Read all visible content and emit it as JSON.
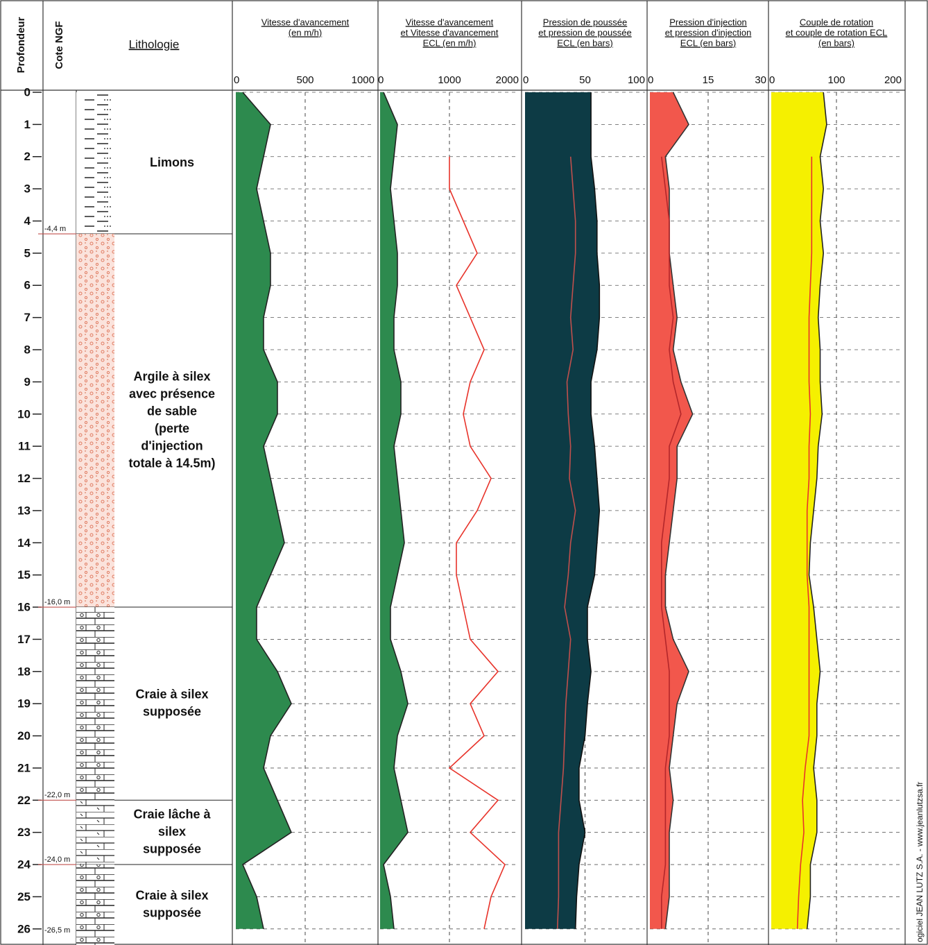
{
  "headers": {
    "depth": "Profondeur",
    "cote": "Cote NGF",
    "lithology": "Lithologie"
  },
  "depth": {
    "lim": [
      0,
      26.5
    ],
    "ticks": [
      0,
      1,
      2,
      3,
      4,
      5,
      6,
      7,
      8,
      9,
      10,
      11,
      12,
      13,
      14,
      15,
      16,
      17,
      18,
      19,
      20,
      21,
      22,
      23,
      24,
      25,
      26
    ]
  },
  "lithology": [
    {
      "top": 0,
      "bottom": 4.4,
      "cote": "-4,4 m",
      "pattern": "silt",
      "label": [
        "Limons"
      ]
    },
    {
      "top": 4.4,
      "bottom": 16.0,
      "cote": "-16,0 m",
      "pattern": "clay",
      "label": [
        "Argile à silex",
        "avec présence",
        "de sable",
        "(perte",
        "d'injection",
        "totale à 14.5m)"
      ]
    },
    {
      "top": 16.0,
      "bottom": 22.0,
      "cote": "-22,0 m",
      "pattern": "chalk",
      "label": [
        "Craie à silex",
        "supposée"
      ]
    },
    {
      "top": 22.0,
      "bottom": 24.0,
      "cote": "-24,0 m",
      "pattern": "loose-chalk",
      "label": [
        "Craie lâche à",
        "silex",
        "supposée"
      ]
    },
    {
      "top": 24.0,
      "bottom": 26.5,
      "cote": "-26,5 m",
      "pattern": "chalk",
      "label": [
        "Craie à silex",
        "supposée"
      ]
    }
  ],
  "chart_data": [
    {
      "type": "area",
      "title": [
        "Vitesse d'avancement",
        "(en m/h)"
      ],
      "xlim": [
        0,
        1000
      ],
      "xticks": [
        0,
        500,
        1000
      ],
      "grid": true,
      "series": [
        {
          "style": "fill",
          "color": "#2d8a4e",
          "outline": "#222222",
          "values": [
            50,
            250,
            200,
            150,
            200,
            250,
            250,
            200,
            200,
            300,
            300,
            200,
            250,
            300,
            350,
            250,
            150,
            150,
            300,
            400,
            250,
            200,
            300,
            400,
            50,
            150,
            200
          ]
        }
      ]
    },
    {
      "type": "area",
      "title": [
        "Vitesse d'avancement",
        "et Vitesse d'avancement",
        "ECL (en m/h)"
      ],
      "xlim": [
        0,
        2000
      ],
      "xticks": [
        0,
        1000,
        2000
      ],
      "grid": true,
      "series": [
        {
          "style": "fill",
          "color": "#2d8a4e",
          "outline": "#222222",
          "values": [
            50,
            250,
            200,
            150,
            200,
            250,
            250,
            200,
            200,
            300,
            300,
            200,
            250,
            300,
            350,
            250,
            150,
            150,
            300,
            400,
            250,
            200,
            300,
            400,
            50,
            150,
            200
          ]
        },
        {
          "style": "line",
          "color": "#e8332a",
          "values": [
            null,
            null,
            1000,
            1000,
            1200,
            1400,
            1100,
            1300,
            1500,
            1300,
            1200,
            1300,
            1600,
            1400,
            1100,
            1100,
            1200,
            1300,
            1700,
            1300,
            1500,
            1000,
            1700,
            1300,
            1800,
            1600,
            1500
          ]
        }
      ]
    },
    {
      "type": "area",
      "title": [
        "Pression de poussée",
        "et pression de poussée",
        "ECL (en bars)"
      ],
      "xlim": [
        0,
        100
      ],
      "xticks": [
        0,
        50,
        100
      ],
      "grid": true,
      "series": [
        {
          "style": "fill",
          "color": "#0d3b45",
          "outline": "#111111",
          "values": [
            55,
            55,
            55,
            58,
            60,
            60,
            62,
            62,
            60,
            55,
            55,
            58,
            60,
            62,
            60,
            58,
            52,
            52,
            55,
            52,
            50,
            45,
            45,
            50,
            45,
            43,
            42
          ]
        },
        {
          "style": "line",
          "color": "#c0504d",
          "values": [
            null,
            null,
            38,
            40,
            42,
            42,
            40,
            38,
            40,
            35,
            36,
            38,
            37,
            42,
            38,
            36,
            33,
            38,
            36,
            34,
            33,
            32,
            30,
            28,
            28,
            28,
            27
          ]
        }
      ]
    },
    {
      "type": "area",
      "title": [
        "Pression d'injection",
        "et pression d'injection",
        "ECL (en bars)"
      ],
      "xlim": [
        0,
        30
      ],
      "xticks": [
        0,
        15,
        30
      ],
      "grid": true,
      "series": [
        {
          "style": "fill",
          "color": "#f2574c",
          "outline": "#333333",
          "values": [
            6,
            10,
            4,
            5,
            5,
            5,
            6,
            7,
            6,
            8,
            11,
            7,
            7,
            6,
            5,
            4,
            4,
            6,
            10,
            7,
            6,
            5,
            6,
            5,
            5,
            5,
            4
          ]
        },
        {
          "style": "line",
          "color": "#b3262a",
          "values": [
            null,
            null,
            3,
            4,
            5,
            5,
            5,
            6,
            5,
            6,
            8,
            5,
            5,
            4,
            3,
            3,
            3,
            4,
            5,
            5,
            5,
            4,
            4,
            4,
            4,
            3,
            3
          ]
        }
      ]
    },
    {
      "type": "area",
      "title": [
        "Couple de rotation",
        "et couple de rotation ECL",
        "(en bars)"
      ],
      "xlim": [
        0,
        200
      ],
      "xticks": [
        0,
        100,
        200
      ],
      "grid": true,
      "series": [
        {
          "style": "fill",
          "color": "#f5f000",
          "outline": "#222222",
          "values": [
            80,
            85,
            75,
            80,
            75,
            80,
            75,
            72,
            75,
            75,
            78,
            72,
            70,
            65,
            60,
            58,
            65,
            70,
            75,
            70,
            70,
            65,
            70,
            70,
            60,
            60,
            55
          ]
        },
        {
          "style": "line",
          "color": "#e8332a",
          "values": [
            null,
            null,
            62,
            62,
            62,
            62,
            60,
            58,
            58,
            58,
            60,
            58,
            58,
            55,
            55,
            55,
            58,
            58,
            58,
            58,
            58,
            52,
            48,
            50,
            45,
            42,
            40
          ]
        }
      ]
    }
  ],
  "footer": "ogiciel JEAN LUTZ S.A. - www.jeanlutzsa.fr"
}
